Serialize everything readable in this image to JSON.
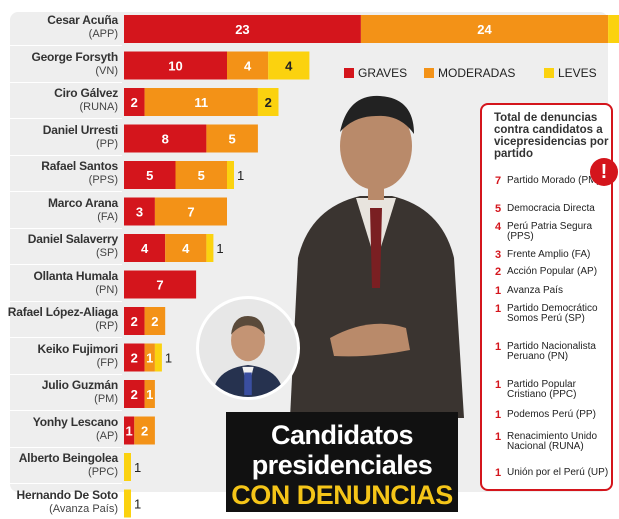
{
  "chart_data": {
    "type": "bar",
    "orientation": "horizontal",
    "stacked": true,
    "categories": [
      {
        "name": "Cesar Acuña",
        "party": "(APP)"
      },
      {
        "name": "George Forsyth",
        "party": "(VN)"
      },
      {
        "name": "Ciro Gálvez",
        "party": "(RUNA)"
      },
      {
        "name": "Daniel Urresti",
        "party": "(PP)"
      },
      {
        "name": "Rafael Santos",
        "party": "(PPS)"
      },
      {
        "name": "Marco Arana",
        "party": "(FA)"
      },
      {
        "name": "Daniel Salaverry",
        "party": "(SP)"
      },
      {
        "name": "Ollanta Humala",
        "party": "(PN)"
      },
      {
        "name": "Rafael López-Aliaga",
        "party": "(RP)"
      },
      {
        "name": "Keiko Fujimori",
        "party": "(FP)"
      },
      {
        "name": "Julio Guzmán",
        "party": "(PM)"
      },
      {
        "name": "Yonhy Lescano",
        "party": "(AP)"
      },
      {
        "name": "Alberto Beingolea",
        "party": "(PPC)"
      },
      {
        "name": "Hernando De Soto",
        "party": "(Avanza País)"
      }
    ],
    "series": [
      {
        "name": "GRAVES",
        "color": "#d4151c",
        "values": [
          23,
          10,
          2,
          8,
          5,
          3,
          4,
          7,
          2,
          2,
          2,
          1,
          0,
          0
        ]
      },
      {
        "name": "MODERADAS",
        "color": "#f39217",
        "values": [
          24,
          4,
          11,
          5,
          5,
          7,
          4,
          0,
          2,
          1,
          1,
          2,
          0,
          0
        ]
      },
      {
        "name": "LEVES",
        "color": "#fbd20f",
        "values": [
          3,
          4,
          2,
          0,
          1,
          0,
          1,
          0,
          0,
          1,
          0,
          0,
          1,
          1
        ]
      }
    ],
    "legend_position": "top-right",
    "xlim": [
      0,
      50
    ]
  },
  "legend": {
    "graves": "GRAVES",
    "moderadas": "MODERADAS",
    "leves": "LEVES"
  },
  "title": {
    "line1": "Candidatos",
    "line2": "presidenciales",
    "line3": "CON DENUNCIAS"
  },
  "side_panel": {
    "title": "Total de denuncias contra candidatos a vicepresidencias por partido",
    "items": [
      {
        "count": "7",
        "label": "Partido Morado (PM)"
      },
      {
        "count": "5",
        "label": "Democracia Directa"
      },
      {
        "count": "4",
        "label": "Perú Patria Segura (PPS)"
      },
      {
        "count": "3",
        "label": "Frente Amplio (FA)"
      },
      {
        "count": "2",
        "label": "Acción Popular (AP)"
      },
      {
        "count": "1",
        "label": "Avanza País"
      },
      {
        "count": "1",
        "label": "Partido Democrático Somos Perú (SP)"
      },
      {
        "count": "1",
        "label": "Partido Nacionalista Peruano (PN)"
      },
      {
        "count": "1",
        "label": "Partido Popular Cristiano (PPC)"
      },
      {
        "count": "1",
        "label": "Podemos Perú (PP)"
      },
      {
        "count": "1",
        "label": "Renacimiento Unido Nacional (RUNA)"
      },
      {
        "count": "1",
        "label": "Unión por el Perú (UP)"
      }
    ],
    "badge": "!"
  },
  "icons": {
    "alert": "exclamation-icon",
    "photo_main": "candidate-photo",
    "photo_small": "candidate-photo-small"
  }
}
